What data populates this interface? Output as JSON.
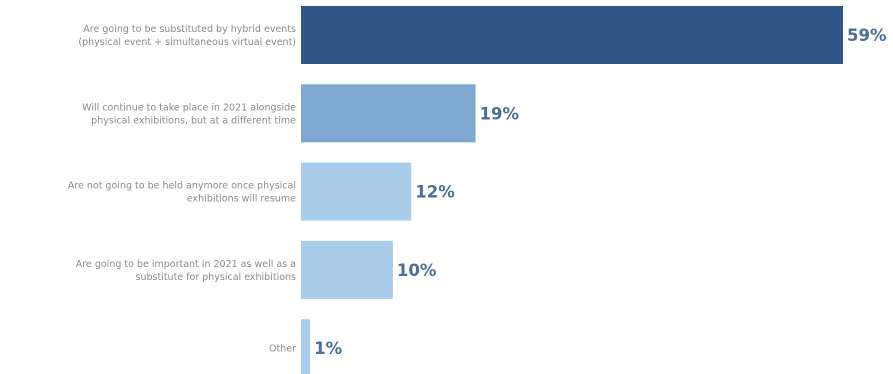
{
  "chart_data": {
    "type": "bar",
    "orientation": "horizontal",
    "title": "",
    "xlabel": "",
    "ylabel": "",
    "xlim": [
      0,
      59
    ],
    "grid": false,
    "legend": "none",
    "categories": [
      [
        "Are going to be substituted by hybrid events",
        "(physical event + simultaneous virtual event)"
      ],
      [
        "Will continue to take place in 2021 alongside",
        "physical exhibitions, but at a different time"
      ],
      [
        "Are not going to be held anymore once physical",
        "exhibitions will resume"
      ],
      [
        "Are going to be important in 2021 as well as a",
        "substitute for physical exhibitions"
      ],
      [
        "Other"
      ]
    ],
    "values": [
      59,
      19,
      12,
      10,
      1
    ],
    "value_labels": [
      "59%",
      "19%",
      "12%",
      "10%",
      "1%"
    ],
    "colors": {
      "bars": [
        "#2e5583",
        "#7ea8cf",
        "#a9cceb",
        "#a9cceb",
        "#a9cceb"
      ],
      "value_text": "#4a6f96",
      "category_text": "#8a8a8a"
    }
  }
}
